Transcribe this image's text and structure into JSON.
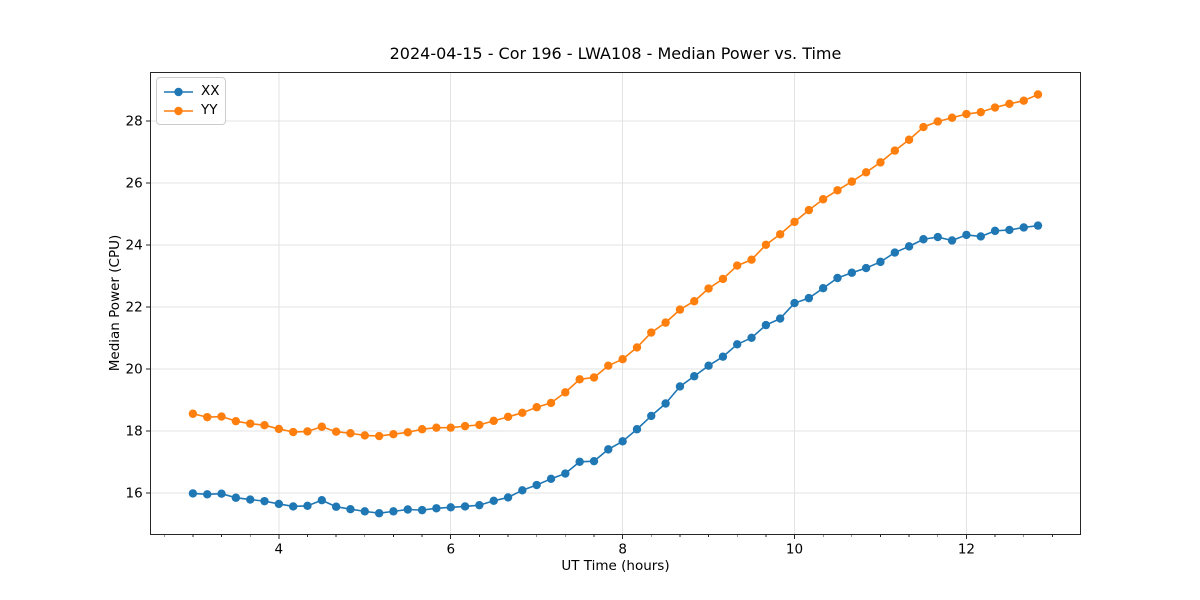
{
  "figure": {
    "background": "#ffffff",
    "spine_color": "#262626",
    "grid_color": "#e3e3e3",
    "text_color": "#000000"
  },
  "chart_data": {
    "type": "line",
    "title": "2024-04-15 - Cor 196 - LWA108 - Median Power vs. Time",
    "xlabel": "UT Time (hours)",
    "ylabel": "Median Power (CPU)",
    "xlim": [
      2.509,
      13.325
    ],
    "ylim": [
      14.66,
      29.56
    ],
    "x_major_ticks": [
      4,
      6,
      8,
      10,
      12
    ],
    "x_minor_step": 0.33333,
    "y_major_ticks": [
      16,
      18,
      20,
      22,
      24,
      26,
      28
    ],
    "grid": true,
    "legend_position": "upper-left",
    "marker": "circle",
    "x": [
      3.0,
      3.167,
      3.333,
      3.5,
      3.667,
      3.833,
      4.0,
      4.167,
      4.333,
      4.5,
      4.667,
      4.833,
      5.0,
      5.167,
      5.333,
      5.5,
      5.667,
      5.833,
      6.0,
      6.167,
      6.333,
      6.5,
      6.667,
      6.833,
      7.0,
      7.167,
      7.333,
      7.5,
      7.667,
      7.833,
      8.0,
      8.167,
      8.333,
      8.5,
      8.667,
      8.833,
      9.0,
      9.167,
      9.333,
      9.5,
      9.667,
      9.833,
      10.0,
      10.167,
      10.333,
      10.5,
      10.667,
      10.833,
      11.0,
      11.167,
      11.333,
      11.5,
      11.667,
      11.833,
      12.0,
      12.167,
      12.333,
      12.5,
      12.667,
      12.833
    ],
    "series": [
      {
        "name": "XX",
        "color": "#1f77b4",
        "values": [
          15.98,
          15.95,
          15.97,
          15.84,
          15.78,
          15.73,
          15.64,
          15.56,
          15.58,
          15.76,
          15.55,
          15.47,
          15.4,
          15.34,
          15.4,
          15.46,
          15.44,
          15.5,
          15.53,
          15.56,
          15.6,
          15.74,
          15.85,
          16.08,
          16.25,
          16.45,
          16.62,
          17.0,
          17.02,
          17.4,
          17.66,
          18.05,
          18.48,
          18.88,
          19.43,
          19.76,
          20.1,
          20.39,
          20.79,
          21.0,
          21.41,
          21.62,
          22.12,
          22.28,
          22.6,
          22.93,
          23.1,
          23.25,
          23.45,
          23.75,
          23.95,
          24.18,
          24.25,
          24.14,
          24.32,
          24.27,
          24.45,
          24.48,
          24.56,
          24.62
        ]
      },
      {
        "name": "YY",
        "color": "#ff7f0e",
        "values": [
          18.55,
          18.44,
          18.46,
          18.31,
          18.23,
          18.18,
          18.06,
          17.96,
          17.98,
          18.13,
          17.97,
          17.92,
          17.85,
          17.83,
          17.89,
          17.95,
          18.05,
          18.1,
          18.1,
          18.15,
          18.19,
          18.32,
          18.45,
          18.58,
          18.76,
          18.9,
          19.24,
          19.66,
          19.72,
          20.1,
          20.31,
          20.69,
          21.17,
          21.49,
          21.91,
          22.18,
          22.59,
          22.9,
          23.33,
          23.52,
          24.0,
          24.34,
          24.74,
          25.12,
          25.47,
          25.76,
          26.04,
          26.34,
          26.66,
          27.04,
          27.39,
          27.8,
          27.98,
          28.1,
          28.22,
          28.28,
          28.43,
          28.55,
          28.65,
          28.85
        ]
      }
    ]
  }
}
